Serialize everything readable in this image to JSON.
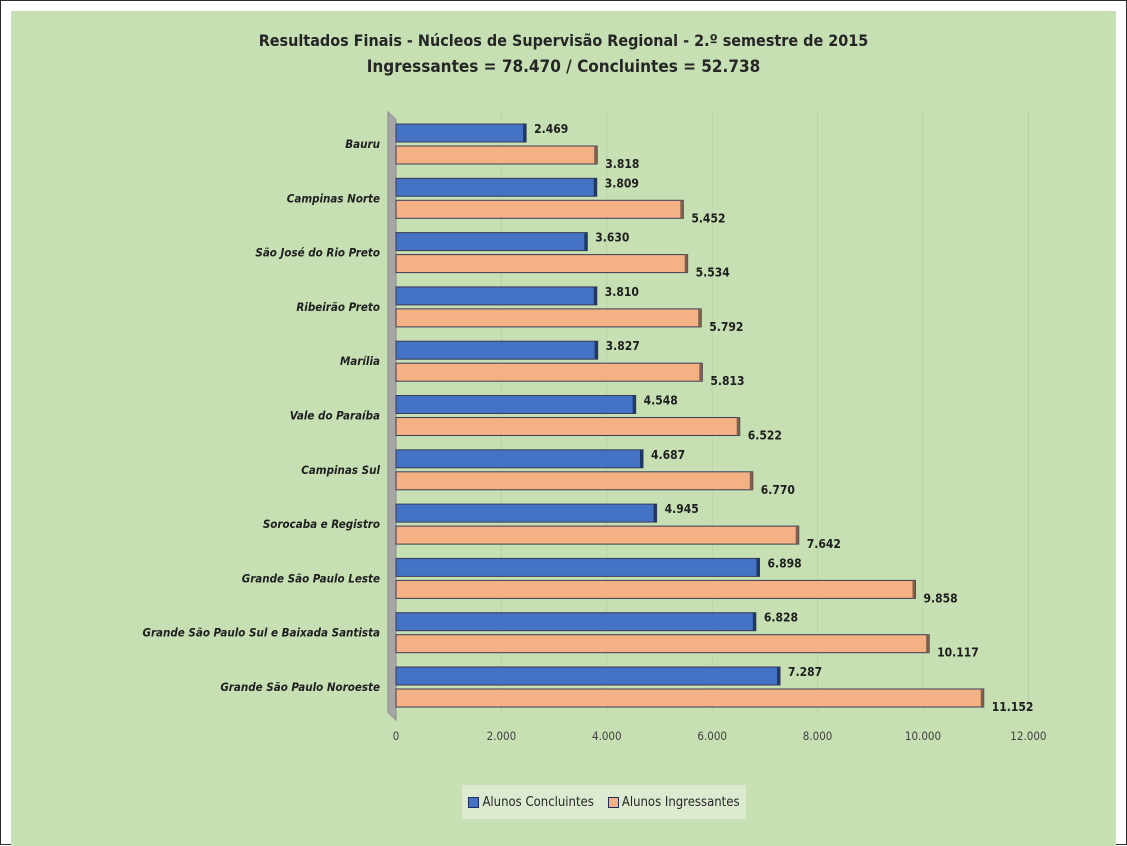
{
  "chart_data": {
    "type": "bar",
    "orientation": "horizontal",
    "title": "Resultados Finais - Núcleos de Supervisão Regional - 2.º semestre de 2015",
    "subtitle": "Ingressantes = 78.470 / Concluintes = 52.738",
    "categories": [
      "Bauru",
      "Campinas Norte",
      "São José do Rio Preto",
      "Ribeirão Preto",
      "Marília",
      "Vale do Paraíba",
      "Campinas Sul",
      "Sorocaba e Registro",
      "Grande São Paulo Leste",
      "Grande São Paulo Sul e Baixada Santista",
      "Grande São Paulo Noroeste"
    ],
    "series": [
      {
        "name": "Alunos Concluintes",
        "color": "#4472c4",
        "values": [
          2469,
          3809,
          3630,
          3810,
          3827,
          4548,
          4687,
          4945,
          6898,
          6828,
          7287
        ],
        "labels": [
          "2.469",
          "3.809",
          "3.630",
          "3.810",
          "3.827",
          "4.548",
          "4.687",
          "4.945",
          "6.898",
          "6.828",
          "7.287"
        ]
      },
      {
        "name": "Alunos Ingressantes",
        "color": "#f4b183",
        "values": [
          3818,
          5452,
          5534,
          5792,
          5813,
          6522,
          6770,
          7642,
          9858,
          10117,
          11152
        ],
        "labels": [
          "3.818",
          "5.452",
          "5.534",
          "5.792",
          "5.813",
          "6.522",
          "6.770",
          "7.642",
          "9.858",
          "10.117",
          "11.152"
        ]
      }
    ],
    "xlim": [
      0,
      12000
    ],
    "xticks": [
      0,
      2000,
      4000,
      6000,
      8000,
      10000,
      12000
    ],
    "xtick_labels": [
      "0",
      "2.000",
      "4.000",
      "6.000",
      "8.000",
      "10.000",
      "12.000"
    ],
    "grid": "vertical",
    "legend_position": "bottom"
  }
}
